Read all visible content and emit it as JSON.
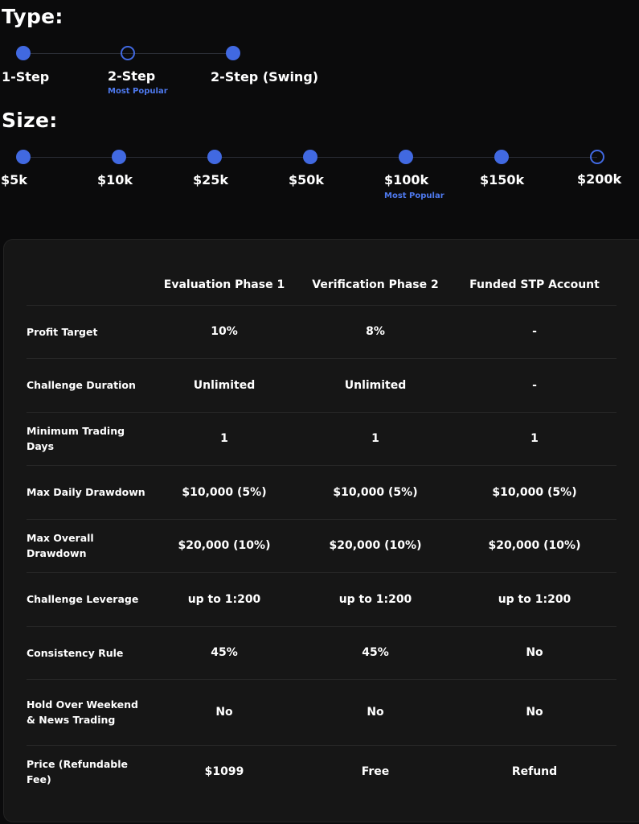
{
  "type_section": {
    "heading": "Type:",
    "options": [
      {
        "label": "1-Step",
        "selected": false
      },
      {
        "label": "2-Step",
        "selected": true,
        "badge": "Most Popular"
      },
      {
        "label": "2-Step (Swing)",
        "selected": false
      }
    ]
  },
  "size_section": {
    "heading": "Size:",
    "options": [
      {
        "label": "$5k",
        "selected": false
      },
      {
        "label": "$10k",
        "selected": false
      },
      {
        "label": "$25k",
        "selected": false
      },
      {
        "label": "$50k",
        "selected": false
      },
      {
        "label": "$100k",
        "selected": false,
        "badge": "Most Popular"
      },
      {
        "label": "$150k",
        "selected": false
      },
      {
        "label": "$200k",
        "selected": true
      }
    ]
  },
  "table": {
    "columns": [
      "Evaluation Phase 1",
      "Verification Phase 2",
      "Funded STP Account"
    ],
    "rows": [
      {
        "label": "Profit Target",
        "values": [
          "10%",
          "8%",
          "-"
        ]
      },
      {
        "label": "Challenge Duration",
        "values": [
          "Unlimited",
          "Unlimited",
          "-"
        ]
      },
      {
        "label": "Minimum Trading Days",
        "values": [
          "1",
          "1",
          "1"
        ]
      },
      {
        "label": "Max Daily Drawdown",
        "values": [
          "$10,000 (5%)",
          "$10,000 (5%)",
          "$10,000 (5%)"
        ]
      },
      {
        "label": "Max Overall Drawdown",
        "values": [
          "$20,000 (10%)",
          "$20,000 (10%)",
          "$20,000 (10%)"
        ]
      },
      {
        "label": "Challenge Leverage",
        "values": [
          "up to 1:200",
          "up to 1:200",
          "up to 1:200"
        ]
      },
      {
        "label": "Consistency Rule",
        "values": [
          "45%",
          "45%",
          "No"
        ]
      },
      {
        "label": "Hold Over Weekend & News Trading",
        "values": [
          "No",
          "No",
          "No"
        ]
      },
      {
        "label": "Price (Refundable Fee)",
        "values": [
          "$1099",
          "Free",
          "Refund"
        ]
      }
    ]
  },
  "colors": {
    "accent": "#4169e1",
    "badge": "#4e79ee",
    "card_bg": "#161616",
    "page_bg": "#0b0b0c"
  }
}
